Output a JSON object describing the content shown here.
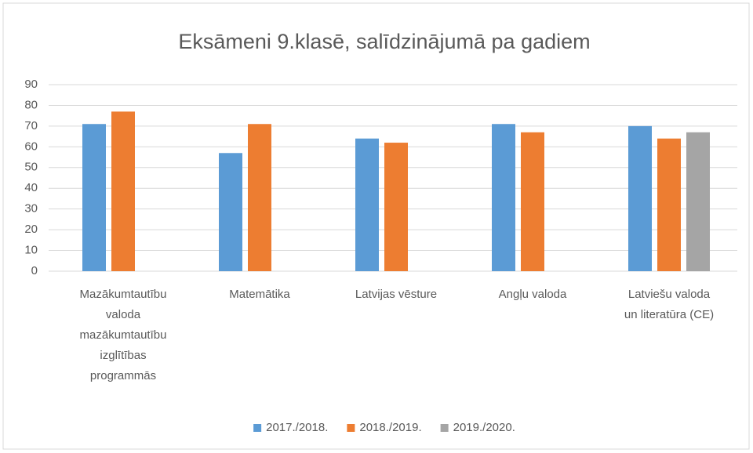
{
  "chart_data": {
    "type": "bar",
    "title": "Eksāmeni 9.klasē, salīdzinājumā pa gadiem",
    "categories": [
      "Mazākumtautību valoda mazākumtautību izglītības programmās",
      "Matemātika",
      "Latvijas vēsture",
      "Angļu valoda",
      "Latviešu valoda un literatūra (CE)"
    ],
    "series": [
      {
        "name": "2017./2018.",
        "color": "#5b9bd5",
        "values": [
          71,
          57,
          64,
          71,
          70
        ]
      },
      {
        "name": "2018./2019.",
        "color": "#ed7d31",
        "values": [
          77,
          71,
          62,
          67,
          64
        ]
      },
      {
        "name": "2019./2020.",
        "color": "#a5a5a5",
        "values": [
          null,
          null,
          null,
          null,
          67
        ]
      }
    ],
    "ylim": [
      0,
      90
    ],
    "yticks": [
      0,
      10,
      20,
      30,
      40,
      50,
      60,
      70,
      80,
      90
    ],
    "grid": true,
    "legend": "bottom"
  }
}
